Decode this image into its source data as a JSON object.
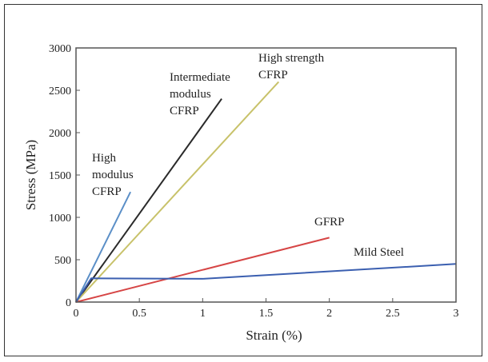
{
  "chart_data": {
    "type": "line",
    "xlabel": "Strain (%)",
    "ylabel": "Stress (MPa)",
    "xlim": [
      0,
      3
    ],
    "ylim": [
      0,
      3000
    ],
    "x_ticks": [
      "0",
      "0.5",
      "1",
      "1.5",
      "2",
      "2.5",
      "3"
    ],
    "y_ticks": [
      "0",
      "500",
      "1000",
      "1500",
      "2000",
      "2500",
      "3000"
    ],
    "grid": false,
    "series": [
      {
        "name": "High modulus CFRP",
        "label_lines": [
          "High",
          "modulus",
          "CFRP"
        ],
        "color": "#5b8fc7",
        "points": [
          [
            0,
            0
          ],
          [
            0.43,
            1300
          ]
        ]
      },
      {
        "name": "Intermediate modulus CFRP",
        "label_lines": [
          "Intermediate",
          "modulus",
          "CFRP"
        ],
        "color": "#2a2a2a",
        "points": [
          [
            0,
            0
          ],
          [
            1.15,
            2400
          ]
        ]
      },
      {
        "name": "High strength CFRP",
        "label_lines": [
          "High strength",
          "CFRP"
        ],
        "color": "#c8c26a",
        "points": [
          [
            0,
            0
          ],
          [
            1.6,
            2600
          ]
        ]
      },
      {
        "name": "GFRP",
        "label_lines": [
          "GFRP"
        ],
        "color": "#d64545",
        "points": [
          [
            0,
            0
          ],
          [
            2.0,
            760
          ]
        ]
      },
      {
        "name": "Mild Steel",
        "label_lines": [
          "Mild Steel"
        ],
        "color": "#3b5fb0",
        "points": [
          [
            0,
            0
          ],
          [
            0.12,
            280
          ],
          [
            1.0,
            275
          ],
          [
            3.0,
            450
          ]
        ]
      }
    ]
  }
}
